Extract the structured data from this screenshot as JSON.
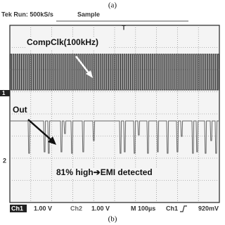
{
  "caption_top": "(a)",
  "header": {
    "status": "Tek Run: 500kS/s",
    "mode": "Sample"
  },
  "screen": {
    "trigger_marker": "T",
    "ch1_marker": "1",
    "ch2_marker": "2",
    "label_ch1": "CompClk(100kHz)",
    "label_ch2": "Out",
    "note": "81% high➔EMI detected"
  },
  "footer": {
    "ch1": "Ch1",
    "ch1_scale": "1.00 V",
    "ch2": "Ch2",
    "ch2_scale": "1.00 V",
    "timebase": "M 100µs",
    "trigger_source": "Ch1",
    "trigger_level": "920mV"
  },
  "caption_bottom": "(b)"
}
